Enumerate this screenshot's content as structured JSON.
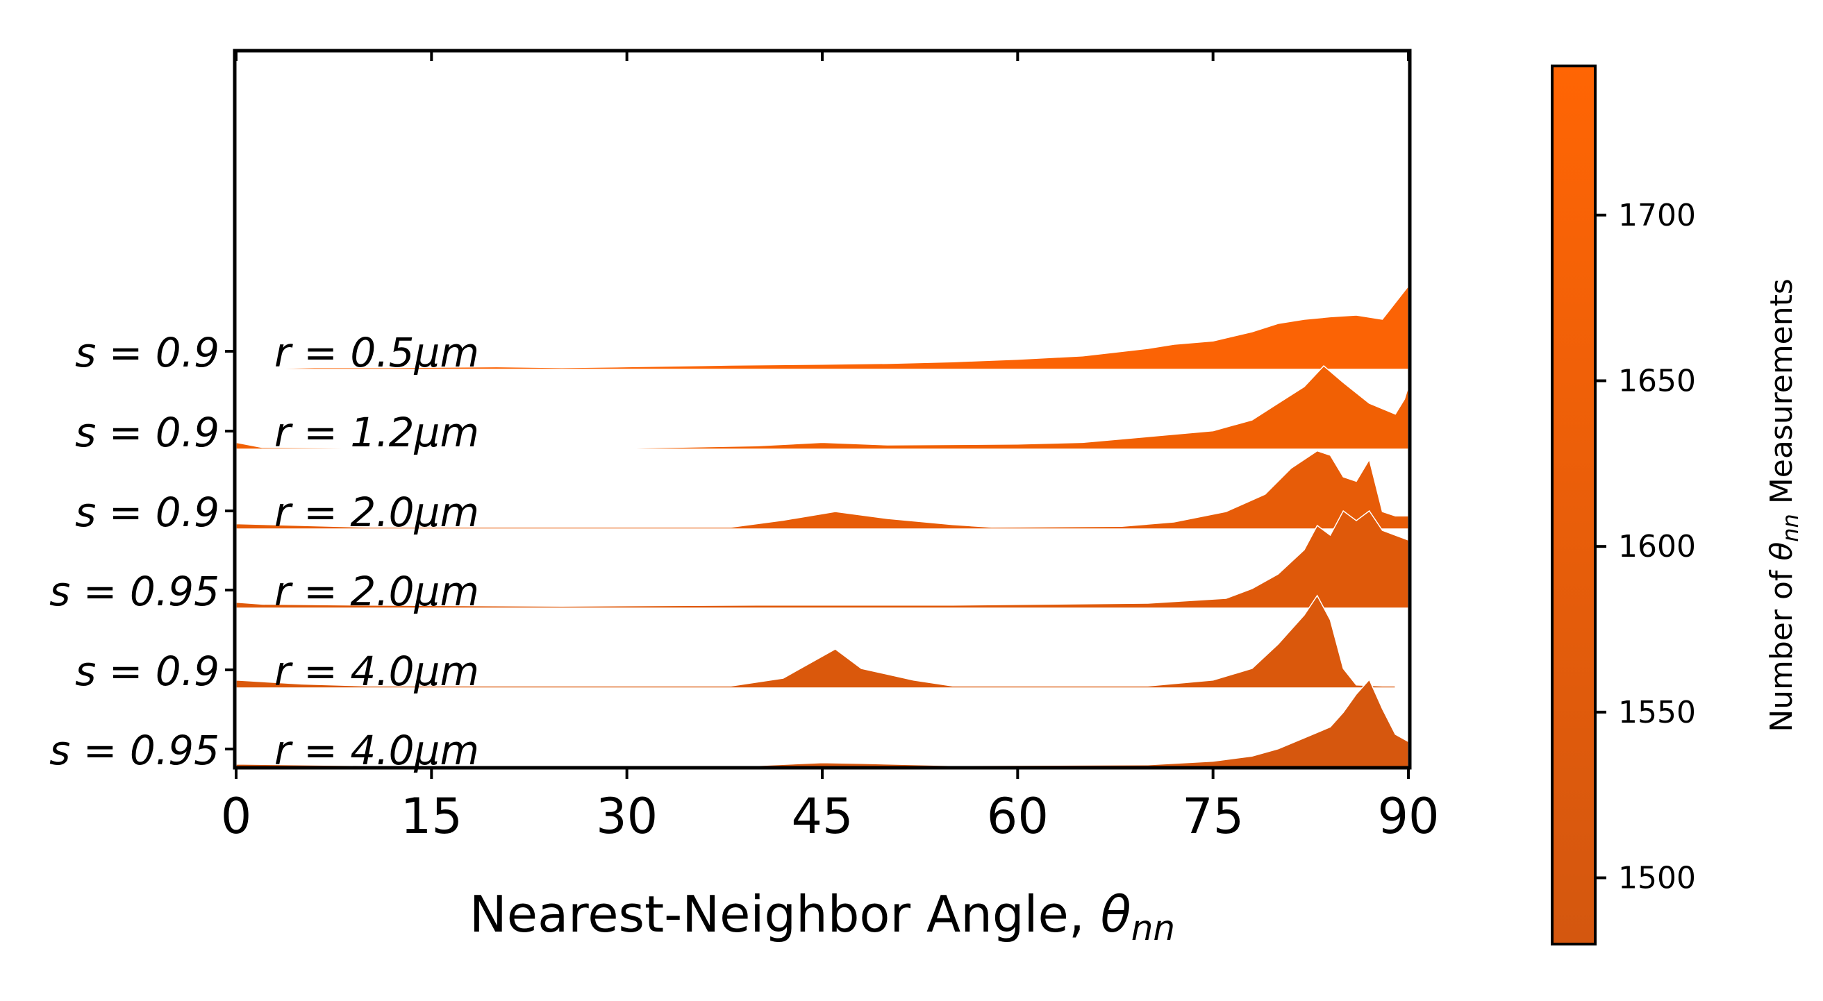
{
  "chart_data": {
    "type": "ridgeline-area",
    "xlabel": "Nearest-Neighbor Angle, ",
    "xlabel_symbol": "θ",
    "xlabel_subscript": "nn",
    "xlim": [
      0,
      90
    ],
    "x_ticks": [
      0,
      15,
      30,
      45,
      60,
      75,
      90
    ],
    "colorbar": {
      "label_prefix": "Number of ",
      "label_symbol": "θ",
      "label_subscript": "nn",
      "label_suffix": " Measurements",
      "range": [
        1480,
        1745
      ],
      "ticks": [
        1500,
        1550,
        1600,
        1650,
        1700
      ],
      "color_low": "#D4570F",
      "color_high": "#FF6504"
    },
    "series": [
      {
        "name": "s = 0.9   r = 0.5μm",
        "s_label": "s = 0.9",
        "r_label": "r = 0.5μm",
        "count": 1720,
        "color": "#FB6305",
        "points": [
          [
            0,
            0
          ],
          [
            6,
            0.02
          ],
          [
            12,
            0.02
          ],
          [
            20,
            0.03
          ],
          [
            25,
            0.02
          ],
          [
            30,
            0.03
          ],
          [
            38,
            0.05
          ],
          [
            45,
            0.06
          ],
          [
            50,
            0.07
          ],
          [
            55,
            0.09
          ],
          [
            60,
            0.12
          ],
          [
            65,
            0.16
          ],
          [
            70,
            0.25
          ],
          [
            72,
            0.3
          ],
          [
            75,
            0.34
          ],
          [
            78,
            0.45
          ],
          [
            80,
            0.55
          ],
          [
            82,
            0.6
          ],
          [
            84,
            0.63
          ],
          [
            86,
            0.65
          ],
          [
            88,
            0.6
          ],
          [
            89.5,
            0.9
          ],
          [
            90,
            1.0
          ]
        ]
      },
      {
        "name": "s = 0.9   r = 1.2μm",
        "s_label": "s = 0.9",
        "r_label": "r = 1.2μm",
        "count": 1680,
        "color": "#F16004",
        "points": [
          [
            0,
            0.08
          ],
          [
            2,
            0.02
          ],
          [
            10,
            0.01
          ],
          [
            30,
            0.01
          ],
          [
            40,
            0.04
          ],
          [
            45,
            0.08
          ],
          [
            50,
            0.05
          ],
          [
            60,
            0.06
          ],
          [
            65,
            0.08
          ],
          [
            70,
            0.15
          ],
          [
            75,
            0.22
          ],
          [
            78,
            0.35
          ],
          [
            80,
            0.55
          ],
          [
            82,
            0.75
          ],
          [
            83.5,
            1.0
          ],
          [
            85,
            0.8
          ],
          [
            87,
            0.55
          ],
          [
            89,
            0.42
          ],
          [
            89.7,
            0.6
          ],
          [
            90,
            0.75
          ]
        ]
      },
      {
        "name": "s = 0.9   r = 2.0μm",
        "s_label": "s = 0.9",
        "r_label": "r = 2.0μm",
        "count": 1640,
        "color": "#E75C08",
        "points": [
          [
            0,
            0.06
          ],
          [
            5,
            0.04
          ],
          [
            10,
            0.02
          ],
          [
            38,
            0.02
          ],
          [
            42,
            0.1
          ],
          [
            46,
            0.2
          ],
          [
            50,
            0.12
          ],
          [
            55,
            0.05
          ],
          [
            58,
            0.02
          ],
          [
            68,
            0.03
          ],
          [
            72,
            0.08
          ],
          [
            76,
            0.2
          ],
          [
            79,
            0.4
          ],
          [
            81,
            0.7
          ],
          [
            83,
            0.9
          ],
          [
            84,
            0.85
          ],
          [
            85,
            0.6
          ],
          [
            86,
            0.55
          ],
          [
            87,
            0.8
          ],
          [
            88,
            0.2
          ],
          [
            89,
            0.15
          ],
          [
            90,
            0.15
          ]
        ]
      },
      {
        "name": "s = 0.95   r = 2.0μm",
        "s_label": "s = 0.95",
        "r_label": "r = 2.0μm",
        "count": 1600,
        "color": "#DF590A",
        "points": [
          [
            0,
            0.06
          ],
          [
            2,
            0.04
          ],
          [
            10,
            0.03
          ],
          [
            25,
            0.02
          ],
          [
            40,
            0.03
          ],
          [
            55,
            0.03
          ],
          [
            70,
            0.05
          ],
          [
            76,
            0.1
          ],
          [
            78,
            0.2
          ],
          [
            80,
            0.35
          ],
          [
            82,
            0.6
          ],
          [
            83,
            0.85
          ],
          [
            84,
            0.75
          ],
          [
            85,
            1.0
          ],
          [
            86,
            0.9
          ],
          [
            87,
            1.0
          ],
          [
            88,
            0.8
          ],
          [
            89,
            0.75
          ],
          [
            90,
            0.7
          ]
        ]
      },
      {
        "name": "s = 0.9   r = 4.0μm",
        "s_label": "s = 0.9",
        "r_label": "r = 4.0μm",
        "count": 1560,
        "color": "#DA580C",
        "points": [
          [
            0,
            0.08
          ],
          [
            5,
            0.04
          ],
          [
            10,
            0.02
          ],
          [
            38,
            0.02
          ],
          [
            42,
            0.1
          ],
          [
            46,
            0.4
          ],
          [
            48,
            0.2
          ],
          [
            52,
            0.08
          ],
          [
            55,
            0.02
          ],
          [
            70,
            0.02
          ],
          [
            75,
            0.08
          ],
          [
            78,
            0.2
          ],
          [
            80,
            0.45
          ],
          [
            82,
            0.75
          ],
          [
            83,
            0.95
          ],
          [
            84,
            0.7
          ],
          [
            85,
            0.2
          ],
          [
            86,
            0.03
          ],
          [
            88,
            0.02
          ],
          [
            89,
            0.02
          ]
        ]
      },
      {
        "name": "s = 0.95   r = 4.0μm",
        "s_label": "s = 0.95",
        "r_label": "r = 4.0μm",
        "count": 1520,
        "color": "#D6570E",
        "points": [
          [
            0,
            0.04
          ],
          [
            10,
            0.02
          ],
          [
            30,
            0.01
          ],
          [
            40,
            0.02
          ],
          [
            45,
            0.06
          ],
          [
            48,
            0.05
          ],
          [
            55,
            0.02
          ],
          [
            70,
            0.03
          ],
          [
            75,
            0.08
          ],
          [
            78,
            0.15
          ],
          [
            80,
            0.25
          ],
          [
            82,
            0.4
          ],
          [
            84,
            0.55
          ],
          [
            85,
            0.75
          ],
          [
            86,
            1.0
          ],
          [
            87,
            1.2
          ],
          [
            88,
            0.8
          ],
          [
            89,
            0.45
          ],
          [
            90,
            0.35
          ]
        ]
      }
    ]
  }
}
